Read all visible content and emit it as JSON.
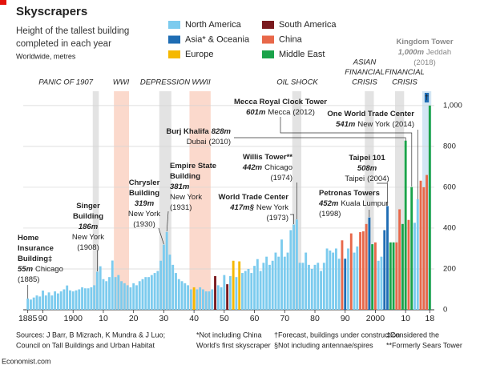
{
  "chart_data": {
    "type": "bar",
    "title": "Skyscrapers",
    "subtitle": [
      "Height of the tallest building",
      "completed in each year"
    ],
    "note": "Worldwide, metres",
    "xlim": [
      1883.5,
      2019.5
    ],
    "xticks": [
      1885,
      {
        "value": 1890,
        "label": "90"
      },
      1900,
      {
        "value": 1910,
        "label": "10"
      },
      {
        "value": 1920,
        "label": "20"
      },
      {
        "value": 1930,
        "label": "30"
      },
      {
        "value": 1940,
        "label": "40"
      },
      {
        "value": 1950,
        "label": "50"
      },
      {
        "value": 1960,
        "label": "60"
      },
      {
        "value": 1970,
        "label": "70"
      },
      {
        "value": 1980,
        "label": "80"
      },
      {
        "value": 1990,
        "label": "90"
      },
      2000,
      {
        "value": 2010,
        "label": "10"
      },
      {
        "value": 2018,
        "label": "18"
      }
    ],
    "ylim": [
      0,
      1070
    ],
    "yticks": [
      0,
      200,
      400,
      600,
      800,
      {
        "value": 1000,
        "label": "1,000"
      }
    ],
    "grid": true,
    "series": [
      {
        "name": "North America",
        "color": "#7ccbee",
        "x": [
          1885,
          1886,
          1887,
          1888,
          1889,
          1890,
          1891,
          1892,
          1893,
          1894,
          1895,
          1896,
          1897,
          1898,
          1899,
          1900,
          1901,
          1902,
          1903,
          1904,
          1905,
          1906,
          1907,
          1908,
          1909,
          1910,
          1911,
          1912,
          1913,
          1914,
          1915,
          1916,
          1917,
          1918,
          1919,
          1920,
          1921,
          1922,
          1923,
          1924,
          1925,
          1926,
          1927,
          1928,
          1929,
          1930,
          1931,
          1932,
          1933,
          1934,
          1935,
          1936,
          1937,
          1938,
          1939,
          1941,
          1942,
          1943,
          1944,
          1945,
          1946,
          1948,
          1949,
          1950,
          1952,
          1954,
          1956,
          1957,
          1958,
          1959,
          1960,
          1961,
          1962,
          1963,
          1964,
          1965,
          1966,
          1967,
          1968,
          1969,
          1970,
          1971,
          1972,
          1973,
          1974,
          1975,
          1976,
          1977,
          1978,
          1979,
          1980,
          1981,
          1982,
          1983,
          1984,
          1985,
          1986,
          1987,
          1988,
          1991,
          1993,
          1994,
          2001,
          2002,
          2013,
          2014
        ],
        "values": [
          55,
          50,
          60,
          70,
          65,
          94,
          70,
          85,
          70,
          90,
          80,
          90,
          100,
          119,
          95,
          90,
          95,
          100,
          110,
          105,
          105,
          110,
          120,
          186,
          213,
          150,
          140,
          160,
          241,
          160,
          170,
          140,
          130,
          120,
          110,
          130,
          120,
          140,
          150,
          160,
          160,
          170,
          180,
          190,
          240,
          319,
          381,
          270,
          220,
          180,
          150,
          140,
          130,
          120,
          100,
          100,
          110,
          100,
          90,
          90,
          100,
          120,
          110,
          170,
          165,
          160,
          180,
          190,
          200,
          180,
          215,
          248,
          190,
          230,
          260,
          220,
          240,
          280,
          260,
          344,
          260,
          280,
          390,
          417,
          442,
          230,
          230,
          280,
          220,
          200,
          220,
          230,
          190,
          230,
          300,
          290,
          280,
          300,
          250,
          300,
          280,
          310,
          240,
          260,
          426,
          541
        ]
      },
      {
        "name": "South America",
        "color": "#7a1a1e",
        "x": [
          1947,
          1951
        ],
        "values": [
          165,
          125
        ]
      },
      {
        "name": "Asia* & Oceania",
        "color": "#1f6db4",
        "x": [
          1990,
          1998,
          2003,
          2004
        ],
        "values": [
          250,
          452,
          390,
          508
        ]
      },
      {
        "name": "China",
        "color": "#e8684a",
        "x": [
          1989,
          1992,
          1995,
          1996,
          1997,
          2000,
          2007,
          2008,
          2011,
          2015,
          2016,
          2017
        ],
        "values": [
          340,
          374,
          380,
          384,
          420,
          330,
          330,
          492,
          440,
          632,
          600,
          660
        ]
      },
      {
        "name": "Europe",
        "color": "#f5b800",
        "x": [
          1940,
          1953,
          1955
        ],
        "values": [
          110,
          240,
          237
        ]
      },
      {
        "name": "Middle East",
        "color": "#1aa34a",
        "x": [
          1999,
          2005,
          2006,
          2009,
          2010,
          2012,
          2018
        ],
        "values": [
          321,
          330,
          330,
          420,
          828,
          601,
          1000
        ]
      }
    ],
    "periods": [
      {
        "label": [
          "PANIC OF 1907"
        ],
        "start": 1907,
        "end": 1908,
        "color": "#e3e3e3",
        "text_color": "#555555"
      },
      {
        "label": [
          "WWI"
        ],
        "start": 1914,
        "end": 1918,
        "color": "#fbd9cc",
        "text_color": "#e8684a"
      },
      {
        "label": [
          "DEPRESSION"
        ],
        "start": 1929,
        "end": 1932,
        "color": "#e3e3e3",
        "text_color": "#555555"
      },
      {
        "label": [
          "WWII"
        ],
        "start": 1939,
        "end": 1945,
        "color": "#fbd9cc",
        "text_color": "#e8684a"
      },
      {
        "label": [
          "OIL SHOCK"
        ],
        "start": 1973,
        "end": 1975,
        "color": "#e3e3e3",
        "text_color": "#555555"
      },
      {
        "label": [
          "ASIAN",
          "FINANCIAL",
          "CRISIS"
        ],
        "start": 1997,
        "end": 1999,
        "color": "#e3e3e3",
        "text_color": "#555555"
      },
      {
        "label": [
          "FINANCIAL",
          "CRISIS"
        ],
        "start": 2007,
        "end": 2009,
        "color": "#e3e3e3",
        "text_color": "#555555"
      }
    ],
    "forecast": {
      "label": "†",
      "start": 2016,
      "end": 2018,
      "color": "#d3e6f4",
      "box_color": "#1f6db4"
    },
    "annotations": [
      {
        "name": [
          "Home",
          "Insurance",
          "Building‡"
        ],
        "height": "55m",
        "place": "Chicago",
        "year": "(1885)"
      },
      {
        "name": [
          "Singer",
          "Building"
        ],
        "height": "186m",
        "place": "New York",
        "year": "(1908)"
      },
      {
        "name": [
          "Chrysler",
          "Building"
        ],
        "height": "319m",
        "place": "New York",
        "year": "(1930)"
      },
      {
        "name": [
          "Empire State",
          "Building"
        ],
        "height": "381m",
        "place": "New York",
        "year": "(1931)"
      },
      {
        "name": [
          "Burj Khalifa"
        ],
        "height": "828m",
        "place": "Dubai",
        "year": "(2010)"
      },
      {
        "name": [
          "Mecca Royal Clock Tower"
        ],
        "height": "601m",
        "place": "Mecca",
        "year": "(2012)"
      },
      {
        "name": [
          "One World Trade Center"
        ],
        "height": "541m",
        "place": "New York",
        "year": "(2014)"
      },
      {
        "name": [
          "Willis Tower**"
        ],
        "height": "442m",
        "place": "Chicago",
        "year": "(1974)"
      },
      {
        "name": [
          "World Trade Center"
        ],
        "height": "417m§",
        "place": "New York",
        "year": "(1973)"
      },
      {
        "name": [
          "Taipei 101"
        ],
        "height": "508m",
        "place": "Taipei",
        "year": "(2004)"
      },
      {
        "name": [
          "Petronas Towers"
        ],
        "height": "452m",
        "place": "Kuala Lumpur",
        "year": "(1998)"
      },
      {
        "name": [
          "Kingdom Tower"
        ],
        "height": "1,000m",
        "place": "Jeddah",
        "year": "(2018)"
      }
    ],
    "source": [
      "Sources: J Barr, B Mizrach, K Mundra & J Luo;",
      "Council on Tall Buildings and Urban Habitat"
    ],
    "footnotes": [
      [
        "*Not including China",
        "World's first skyscraper"
      ],
      [
        "†Forecast, buildings under construction",
        "§Not including antennae/spires"
      ],
      [
        "‡Considered the",
        "**Formerly Sears Tower"
      ]
    ],
    "brand": "Economist.com"
  }
}
